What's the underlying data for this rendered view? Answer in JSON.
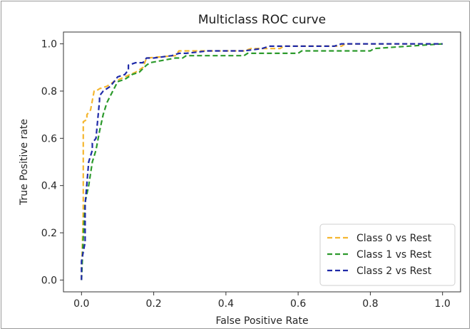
{
  "chart_data": {
    "type": "line",
    "title": "Multiclass ROC curve",
    "xlabel": "False Positive Rate",
    "ylabel": "True Positive rate",
    "xlim": [
      -0.05,
      1.05
    ],
    "ylim": [
      -0.05,
      1.05
    ],
    "xticks": [
      "0.0",
      "0.2",
      "0.4",
      "0.6",
      "0.8",
      "1.0"
    ],
    "yticks": [
      "0.0",
      "0.2",
      "0.4",
      "0.6",
      "0.8",
      "1.0"
    ],
    "grid": false,
    "legend_position": "lower-right",
    "line_style": "dashed",
    "series": [
      {
        "name": "Class 0 vs Rest",
        "color": "#f5b731",
        "x": [
          0.0,
          0.005,
          0.005,
          0.015,
          0.015,
          0.025,
          0.035,
          0.04,
          0.05,
          0.07,
          0.09,
          0.12,
          0.15,
          0.17,
          0.18,
          0.26,
          0.27,
          0.45,
          0.47,
          0.55,
          0.56,
          0.72,
          0.73,
          1.0
        ],
        "y": [
          0.0,
          0.3,
          0.67,
          0.68,
          0.7,
          0.72,
          0.8,
          0.8,
          0.81,
          0.82,
          0.84,
          0.86,
          0.88,
          0.9,
          0.94,
          0.95,
          0.97,
          0.97,
          0.98,
          0.98,
          0.99,
          0.99,
          1.0,
          1.0
        ]
      },
      {
        "name": "Class 1 vs Rest",
        "color": "#2c9a2c",
        "x": [
          0.0,
          0.005,
          0.01,
          0.02,
          0.03,
          0.04,
          0.05,
          0.06,
          0.07,
          0.08,
          0.1,
          0.12,
          0.14,
          0.16,
          0.18,
          0.19,
          0.26,
          0.28,
          0.29,
          0.4,
          0.45,
          0.46,
          0.6,
          0.61,
          0.8,
          0.81,
          1.0
        ],
        "y": [
          0.0,
          0.18,
          0.33,
          0.4,
          0.5,
          0.55,
          0.63,
          0.7,
          0.75,
          0.78,
          0.84,
          0.85,
          0.87,
          0.88,
          0.91,
          0.92,
          0.94,
          0.94,
          0.95,
          0.95,
          0.95,
          0.96,
          0.96,
          0.97,
          0.97,
          0.98,
          1.0
        ]
      },
      {
        "name": "Class 2 vs Rest",
        "color": "#1f2aa8",
        "x": [
          0.0,
          0.0,
          0.01,
          0.01,
          0.02,
          0.03,
          0.03,
          0.04,
          0.05,
          0.05,
          0.06,
          0.08,
          0.09,
          0.1,
          0.12,
          0.13,
          0.13,
          0.15,
          0.17,
          0.18,
          0.2,
          0.25,
          0.27,
          0.29,
          0.35,
          0.45,
          0.5,
          0.52,
          0.7,
          0.72,
          1.0
        ],
        "y": [
          0.0,
          0.08,
          0.16,
          0.32,
          0.5,
          0.55,
          0.58,
          0.6,
          0.76,
          0.78,
          0.8,
          0.82,
          0.84,
          0.86,
          0.87,
          0.89,
          0.91,
          0.92,
          0.92,
          0.94,
          0.94,
          0.95,
          0.96,
          0.96,
          0.97,
          0.97,
          0.98,
          0.99,
          0.99,
          1.0,
          1.0
        ]
      }
    ]
  }
}
